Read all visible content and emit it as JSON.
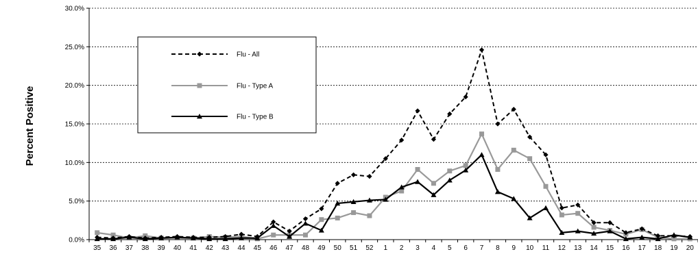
{
  "chart_data": {
    "type": "line",
    "title": "",
    "xlabel": "",
    "ylabel": "Percent Positive",
    "ylim": [
      0,
      30
    ],
    "yticks": [
      "0.0%",
      "5.0%",
      "10.0%",
      "15.0%",
      "20.0%",
      "25.0%",
      "30.0%"
    ],
    "grid": "horizontal dashed",
    "legend_position": "top-left",
    "categories": [
      "35",
      "36",
      "37",
      "38",
      "39",
      "40",
      "41",
      "42",
      "43",
      "44",
      "45",
      "46",
      "47",
      "48",
      "49",
      "50",
      "51",
      "52",
      "1",
      "2",
      "3",
      "4",
      "5",
      "6",
      "7",
      "8",
      "9",
      "10",
      "11",
      "12",
      "13",
      "14",
      "15",
      "16",
      "17",
      "18",
      "19",
      "20"
    ],
    "series": [
      {
        "name": "Flu - All",
        "color": "#000000",
        "style": "dashed",
        "marker": "diamond",
        "values": [
          0.3,
          0.2,
          0.4,
          0.2,
          0.3,
          0.4,
          0.3,
          0.3,
          0.4,
          0.7,
          0.4,
          2.3,
          1.1,
          2.7,
          4.0,
          7.3,
          8.4,
          8.2,
          10.5,
          12.9,
          16.7,
          13.0,
          16.3,
          18.5,
          24.6,
          15.0,
          16.9,
          13.3,
          11.0,
          4.1,
          4.5,
          2.2,
          2.2,
          0.9,
          1.4,
          0.5,
          0.5,
          0.4
        ]
      },
      {
        "name": "Flu - Type A",
        "color": "#999999",
        "style": "solid",
        "marker": "square",
        "values": [
          0.9,
          0.6,
          0.2,
          0.5,
          0.2,
          0.2,
          0.2,
          0.4,
          0.3,
          0.4,
          0.1,
          0.6,
          0.6,
          0.6,
          2.6,
          2.8,
          3.5,
          3.1,
          5.5,
          6.3,
          9.1,
          7.3,
          8.9,
          9.6,
          13.7,
          9.1,
          11.6,
          10.5,
          6.9,
          3.2,
          3.4,
          1.6,
          1.2,
          0.7,
          1.3,
          0.3,
          0.1,
          0.1
        ]
      },
      {
        "name": "Flu - Type B",
        "color": "#000000",
        "style": "solid",
        "marker": "triangle",
        "values": [
          0.1,
          0.1,
          0.3,
          0.1,
          0.2,
          0.3,
          0.2,
          0.1,
          0.1,
          0.2,
          0.2,
          1.8,
          0.4,
          2.1,
          1.2,
          4.7,
          4.9,
          5.1,
          5.2,
          6.8,
          7.5,
          5.8,
          7.7,
          9.0,
          11.0,
          6.2,
          5.3,
          2.8,
          4.1,
          0.9,
          1.1,
          0.8,
          1.1,
          0.1,
          0.3,
          0.1,
          0.6,
          0.3
        ]
      }
    ]
  }
}
